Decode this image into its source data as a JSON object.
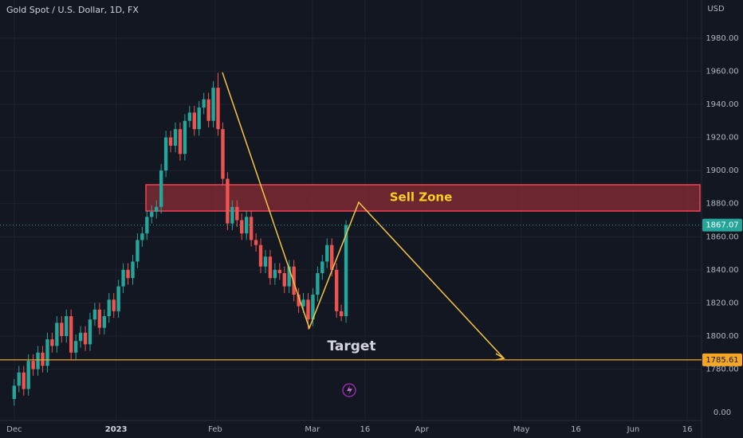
{
  "chart_data": {
    "type": "candlestick",
    "title": "Gold Spot / U.S. Dollar, 1D, FX",
    "currency": "USD",
    "open": [
      1762,
      1770,
      1778,
      1768,
      1785,
      1780,
      1790,
      1782,
      1798,
      1794,
      1808,
      1800,
      1812,
      1790,
      1797,
      1802,
      1795,
      1810,
      1816,
      1805,
      1812,
      1822,
      1815,
      1830,
      1840,
      1835,
      1845,
      1858,
      1862,
      1872,
      1875,
      1878,
      1900,
      1920,
      1915,
      1925,
      1910,
      1930,
      1935,
      1925,
      1938,
      1943,
      1930,
      1950,
      1925,
      1895,
      1868,
      1878,
      1870,
      1862,
      1872,
      1858,
      1855,
      1842,
      1848,
      1835,
      1840,
      1838,
      1830,
      1842,
      1825,
      1818,
      1822,
      1810,
      1825,
      1838,
      1845,
      1855,
      1840,
      1815,
      1812
    ],
    "high": [
      1774,
      1782,
      1782,
      1789,
      1789,
      1794,
      1794,
      1802,
      1802,
      1812,
      1812,
      1816,
      1816,
      1801,
      1806,
      1806,
      1814,
      1820,
      1820,
      1816,
      1826,
      1826,
      1834,
      1844,
      1844,
      1849,
      1862,
      1866,
      1876,
      1879,
      1882,
      1904,
      1924,
      1924,
      1929,
      1929,
      1934,
      1939,
      1939,
      1942,
      1947,
      1947,
      1954,
      1959,
      1929,
      1899,
      1882,
      1882,
      1874,
      1876,
      1876,
      1862,
      1859,
      1852,
      1852,
      1844,
      1844,
      1842,
      1846,
      1846,
      1829,
      1826,
      1826,
      1829,
      1842,
      1849,
      1859,
      1859,
      1844,
      1819,
      1870
    ],
    "low": [
      1758,
      1766,
      1764,
      1764,
      1776,
      1776,
      1778,
      1778,
      1790,
      1790,
      1796,
      1796,
      1786,
      1786,
      1793,
      1791,
      1791,
      1806,
      1801,
      1801,
      1808,
      1811,
      1811,
      1826,
      1831,
      1831,
      1841,
      1854,
      1858,
      1868,
      1871,
      1874,
      1896,
      1911,
      1911,
      1906,
      1906,
      1926,
      1921,
      1921,
      1934,
      1926,
      1926,
      1921,
      1891,
      1864,
      1864,
      1866,
      1858,
      1858,
      1854,
      1851,
      1838,
      1838,
      1831,
      1831,
      1834,
      1826,
      1826,
      1821,
      1814,
      1814,
      1804,
      1806,
      1821,
      1834,
      1841,
      1836,
      1811,
      1809,
      1808
    ],
    "close": [
      1770,
      1778,
      1768,
      1785,
      1780,
      1790,
      1782,
      1798,
      1794,
      1808,
      1800,
      1812,
      1790,
      1797,
      1802,
      1795,
      1810,
      1816,
      1805,
      1812,
      1822,
      1815,
      1830,
      1840,
      1835,
      1845,
      1858,
      1862,
      1872,
      1875,
      1878,
      1900,
      1920,
      1915,
      1925,
      1910,
      1930,
      1935,
      1925,
      1938,
      1943,
      1930,
      1950,
      1925,
      1895,
      1868,
      1878,
      1870,
      1862,
      1872,
      1858,
      1855,
      1842,
      1848,
      1835,
      1840,
      1838,
      1830,
      1842,
      1825,
      1818,
      1822,
      1810,
      1825,
      1838,
      1845,
      1855,
      1840,
      1815,
      1812,
      1867
    ],
    "up_color": "#26a69a",
    "down_color": "#ef5350",
    "xlim": [
      -3,
      145
    ],
    "xticks": [
      {
        "value": 0,
        "label": "Dec"
      },
      {
        "value": 21.5,
        "label": "2023"
      },
      {
        "value": 42.4,
        "label": "Feb"
      },
      {
        "value": 62.9,
        "label": "Mar"
      },
      {
        "value": 74,
        "label": "16"
      },
      {
        "value": 86,
        "label": "Apr"
      },
      {
        "value": 107,
        "label": "May"
      },
      {
        "value": 118.5,
        "label": "16"
      },
      {
        "value": 130.6,
        "label": "Jun"
      },
      {
        "value": 142,
        "label": "16"
      }
    ],
    "ylim": [
      1749,
      2003
    ],
    "yticks": [
      {
        "value": 1980,
        "label": "1980.00"
      },
      {
        "value": 1960,
        "label": "1960.00"
      },
      {
        "value": 1940,
        "label": "1940.00"
      },
      {
        "value": 1920,
        "label": "1920.00"
      },
      {
        "value": 1900,
        "label": "1900.00"
      },
      {
        "value": 1880,
        "label": "1880.00"
      },
      {
        "value": 1860,
        "label": "1860.00"
      },
      {
        "value": 1840,
        "label": "1840.00"
      },
      {
        "value": 1820,
        "label": "1820.00"
      },
      {
        "value": 1800,
        "label": "1800.00"
      },
      {
        "value": 1780,
        "label": "1780.00"
      }
    ],
    "volume_axis_label": "0.00",
    "grid": true,
    "last_price": 1867.07,
    "target_level": 1785.61,
    "target_color": "#f5a623",
    "annotations": {
      "sell_zone": "Sell Zone",
      "target": "Target"
    }
  }
}
